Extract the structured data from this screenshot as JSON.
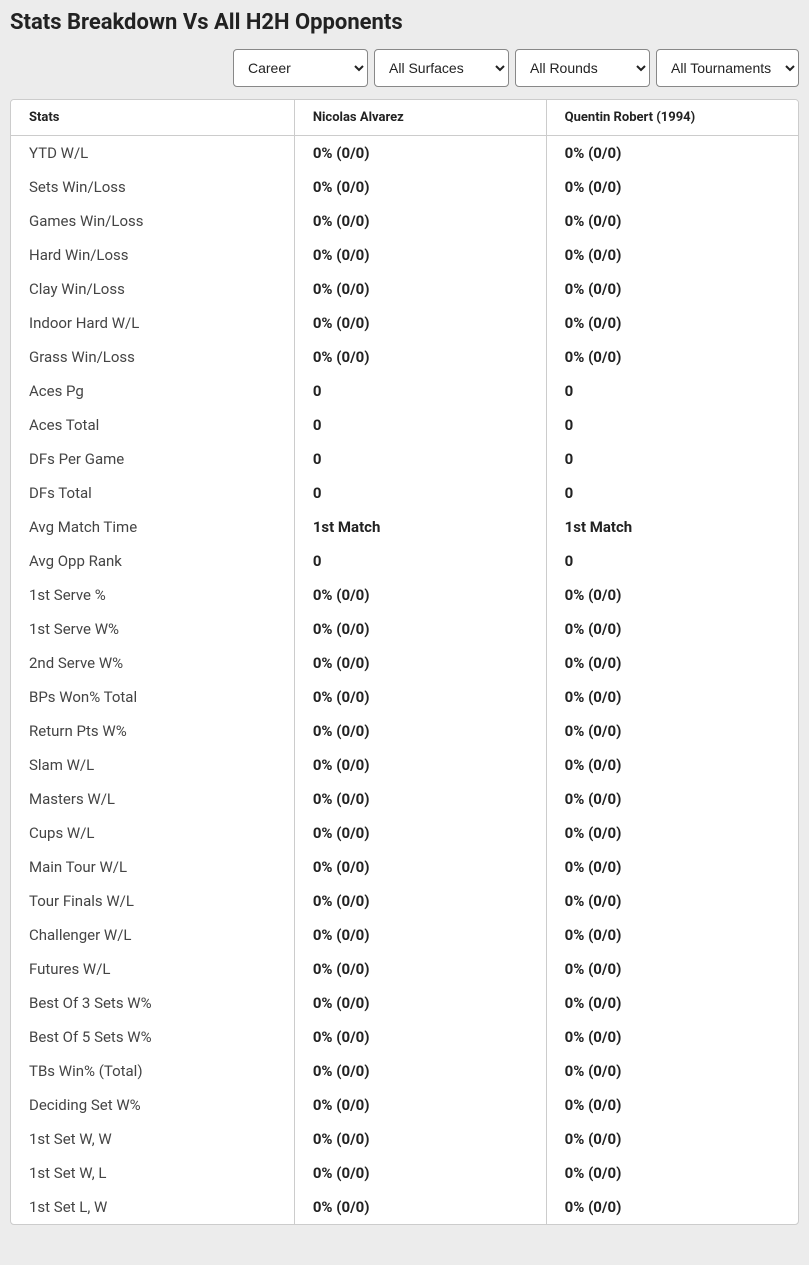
{
  "title": "Stats Breakdown Vs All H2H Opponents",
  "filters": {
    "period": "Career",
    "surface": "All Surfaces",
    "round": "All Rounds",
    "tournament": "All Tournaments"
  },
  "table": {
    "columns": [
      "Stats",
      "Nicolas Alvarez",
      "Quentin Robert (1994)"
    ],
    "rows": [
      [
        "YTD W/L",
        "0% (0/0)",
        "0% (0/0)"
      ],
      [
        "Sets Win/Loss",
        "0% (0/0)",
        "0% (0/0)"
      ],
      [
        "Games Win/Loss",
        "0% (0/0)",
        "0% (0/0)"
      ],
      [
        "Hard Win/Loss",
        "0% (0/0)",
        "0% (0/0)"
      ],
      [
        "Clay Win/Loss",
        "0% (0/0)",
        "0% (0/0)"
      ],
      [
        "Indoor Hard W/L",
        "0% (0/0)",
        "0% (0/0)"
      ],
      [
        "Grass Win/Loss",
        "0% (0/0)",
        "0% (0/0)"
      ],
      [
        "Aces Pg",
        "0",
        "0"
      ],
      [
        "Aces Total",
        "0",
        "0"
      ],
      [
        "DFs Per Game",
        "0",
        "0"
      ],
      [
        "DFs Total",
        "0",
        "0"
      ],
      [
        "Avg Match Time",
        "1st Match",
        "1st Match"
      ],
      [
        "Avg Opp Rank",
        "0",
        "0"
      ],
      [
        "1st Serve %",
        "0% (0/0)",
        "0% (0/0)"
      ],
      [
        "1st Serve W%",
        "0% (0/0)",
        "0% (0/0)"
      ],
      [
        "2nd Serve W%",
        "0% (0/0)",
        "0% (0/0)"
      ],
      [
        "BPs Won% Total",
        "0% (0/0)",
        "0% (0/0)"
      ],
      [
        "Return Pts W%",
        "0% (0/0)",
        "0% (0/0)"
      ],
      [
        "Slam W/L",
        "0% (0/0)",
        "0% (0/0)"
      ],
      [
        "Masters W/L",
        "0% (0/0)",
        "0% (0/0)"
      ],
      [
        "Cups W/L",
        "0% (0/0)",
        "0% (0/0)"
      ],
      [
        "Main Tour W/L",
        "0% (0/0)",
        "0% (0/0)"
      ],
      [
        "Tour Finals W/L",
        "0% (0/0)",
        "0% (0/0)"
      ],
      [
        "Challenger W/L",
        "0% (0/0)",
        "0% (0/0)"
      ],
      [
        "Futures W/L",
        "0% (0/0)",
        "0% (0/0)"
      ],
      [
        "Best Of 3 Sets W%",
        "0% (0/0)",
        "0% (0/0)"
      ],
      [
        "Best Of 5 Sets W%",
        "0% (0/0)",
        "0% (0/0)"
      ],
      [
        "TBs Win% (Total)",
        "0% (0/0)",
        "0% (0/0)"
      ],
      [
        "Deciding Set W%",
        "0% (0/0)",
        "0% (0/0)"
      ],
      [
        "1st Set W, W",
        "0% (0/0)",
        "0% (0/0)"
      ],
      [
        "1st Set W, L",
        "0% (0/0)",
        "0% (0/0)"
      ],
      [
        "1st Set L, W",
        "0% (0/0)",
        "0% (0/0)"
      ]
    ]
  },
  "styling": {
    "background_color": "#ececec",
    "table_background": "#ffffff",
    "border_color": "#cccccc",
    "title_fontsize": 22,
    "header_fontsize": 13,
    "cell_fontsize": 15,
    "stat_label_color": "#444444",
    "value_color": "#222222",
    "value_fontweight": 700,
    "column_widths": [
      "36%",
      "32%",
      "32%"
    ]
  }
}
